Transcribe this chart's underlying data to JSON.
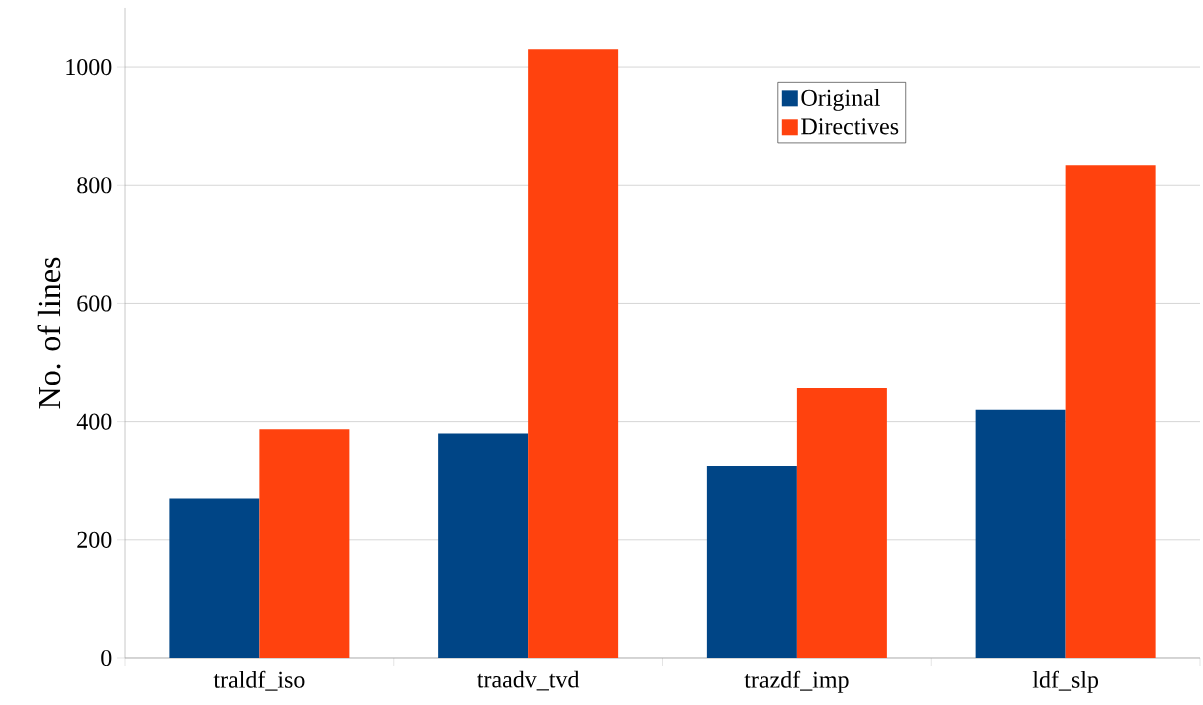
{
  "chart_data": {
    "type": "bar",
    "ylabel": "No. of lines",
    "categories": [
      "traldf_iso",
      "traadv_tvd",
      "trazdf_imp",
      "ldf_slp"
    ],
    "series": [
      {
        "name": "Original",
        "color": "#004586",
        "values": [
          270,
          380,
          325,
          420
        ]
      },
      {
        "name": "Directives",
        "color": "#ff420e",
        "values": [
          387,
          1030,
          457,
          834
        ]
      }
    ],
    "ylim": [
      0,
      1100
    ],
    "yticks": [
      0,
      200,
      400,
      600,
      800,
      1000
    ],
    "grid": "y",
    "legend": "top right"
  }
}
